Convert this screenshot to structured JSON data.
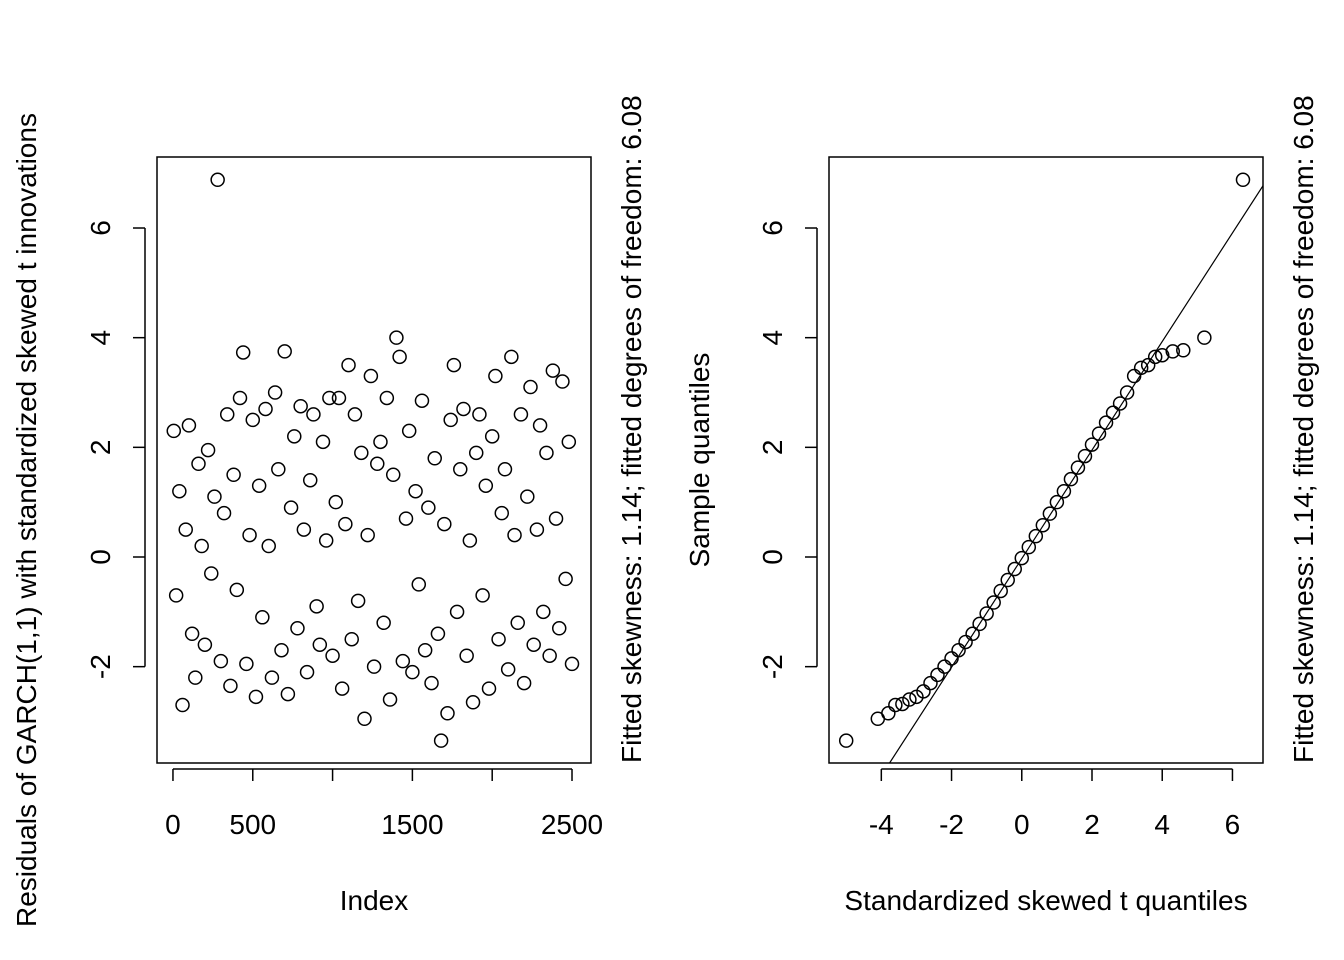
{
  "chart_data": [
    {
      "type": "scatter",
      "xlabel": "Index",
      "ylabel": "Residuals of GARCH(1,1) with standardized skewed t innovations",
      "annotation": "Fitted skewness: 1.14; fitted degrees of freedom: 6.08",
      "xlim": [
        -100,
        2619
      ],
      "ylim": [
        -3.757,
        7.295
      ],
      "xticks": [
        0,
        500,
        {
          "value": 1000,
          "label": null
        },
        1500,
        {
          "value": 2000,
          "label": null
        },
        2500
      ],
      "yticks": [
        -2,
        0,
        2,
        4,
        6
      ],
      "color": "#000000",
      "x": [
        5,
        20,
        40,
        60,
        80,
        100,
        120,
        140,
        160,
        180,
        200,
        220,
        240,
        260,
        280,
        300,
        320,
        340,
        360,
        380,
        400,
        420,
        440,
        460,
        480,
        500,
        520,
        540,
        560,
        580,
        600,
        620,
        640,
        660,
        680,
        700,
        720,
        740,
        760,
        780,
        800,
        820,
        840,
        860,
        880,
        900,
        920,
        940,
        960,
        980,
        1000,
        1020,
        1040,
        1060,
        1080,
        1100,
        1120,
        1140,
        1160,
        1180,
        1200,
        1220,
        1240,
        1260,
        1280,
        1300,
        1320,
        1340,
        1360,
        1380,
        1400,
        1420,
        1440,
        1460,
        1480,
        1500,
        1520,
        1540,
        1560,
        1580,
        1600,
        1620,
        1640,
        1660,
        1680,
        1700,
        1720,
        1740,
        1760,
        1780,
        1800,
        1820,
        1840,
        1860,
        1880,
        1900,
        1920,
        1940,
        1960,
        1980,
        2000,
        2020,
        2040,
        2060,
        2080,
        2100,
        2120,
        2140,
        2160,
        2180,
        2200,
        2220,
        2240,
        2260,
        2280,
        2300,
        2320,
        2340,
        2360,
        2380,
        2400,
        2420,
        2440,
        2460,
        2480,
        2500
      ],
      "values": [
        2.3,
        -0.7,
        1.2,
        -2.7,
        0.5,
        2.4,
        -1.4,
        -2.2,
        1.7,
        0.2,
        -1.6,
        1.95,
        -0.3,
        1.1,
        6.88,
        -1.9,
        0.8,
        2.6,
        -2.35,
        1.5,
        -0.6,
        2.9,
        3.73,
        -1.95,
        0.4,
        2.5,
        -2.55,
        1.3,
        -1.1,
        2.7,
        0.2,
        -2.2,
        3.0,
        1.6,
        -1.7,
        3.75,
        -2.5,
        0.9,
        2.2,
        -1.3,
        2.75,
        0.5,
        -2.1,
        1.4,
        2.6,
        -0.9,
        -1.6,
        2.1,
        0.3,
        2.9,
        -1.8,
        1.0,
        2.9,
        -2.4,
        0.6,
        3.5,
        -1.5,
        2.6,
        -0.8,
        1.9,
        -2.95,
        0.4,
        3.3,
        -2.0,
        1.7,
        2.1,
        -1.2,
        2.9,
        -2.6,
        1.5,
        4.0,
        3.65,
        -1.9,
        0.7,
        2.3,
        -2.1,
        1.2,
        -0.5,
        2.85,
        -1.7,
        0.9,
        -2.3,
        1.8,
        -1.4,
        -3.35,
        0.6,
        -2.85,
        2.5,
        3.5,
        -1.0,
        1.6,
        2.7,
        -1.8,
        0.3,
        -2.65,
        1.9,
        2.6,
        -0.7,
        1.3,
        -2.4,
        2.2,
        3.3,
        -1.5,
        0.8,
        1.6,
        -2.05,
        3.65,
        0.4,
        -1.2,
        2.6,
        -2.3,
        1.1,
        3.1,
        -1.6,
        0.5,
        2.4,
        -1.0,
        1.9,
        -1.8,
        3.4,
        0.7,
        -1.3,
        3.2,
        -0.4,
        2.1,
        -1.95
      ]
    },
    {
      "type": "scatter",
      "xlabel": "Standardized skewed t quantiles",
      "ylabel": "Sample quantiles",
      "annotation": "Fitted skewness: 1.14; fitted degrees of freedom: 6.08",
      "xlim": [
        -5.49,
        6.87
      ],
      "ylim": [
        -3.757,
        7.295
      ],
      "xticks": [
        -4,
        -2,
        0,
        2,
        4,
        6
      ],
      "yticks": [
        -2,
        0,
        2,
        4,
        6
      ],
      "color": "#000000",
      "reference_line": {
        "intercept": -0.03,
        "slope": 0.99
      },
      "x": [
        -5.0,
        -4.1,
        -3.8,
        -3.6,
        -3.4,
        -3.2,
        -3.0,
        -2.8,
        -2.6,
        -2.4,
        -2.2,
        -2.0,
        -1.8,
        -1.6,
        -1.4,
        -1.2,
        -1.0,
        -0.8,
        -0.6,
        -0.4,
        -0.2,
        0.0,
        0.2,
        0.4,
        0.6,
        0.8,
        1.0,
        1.2,
        1.4,
        1.6,
        1.8,
        2.0,
        2.2,
        2.4,
        2.6,
        2.8,
        3.0,
        3.2,
        3.4,
        3.6,
        3.8,
        4.0,
        4.3,
        4.6,
        5.2,
        6.3
      ],
      "values": [
        -3.35,
        -2.95,
        -2.85,
        -2.7,
        -2.68,
        -2.6,
        -2.55,
        -2.45,
        -2.3,
        -2.15,
        -2.0,
        -1.85,
        -1.7,
        -1.55,
        -1.4,
        -1.22,
        -1.03,
        -0.83,
        -0.62,
        -0.42,
        -0.22,
        -0.02,
        0.18,
        0.38,
        0.58,
        0.79,
        1.0,
        1.2,
        1.42,
        1.63,
        1.84,
        2.05,
        2.25,
        2.45,
        2.63,
        2.8,
        3.0,
        3.3,
        3.45,
        3.5,
        3.65,
        3.68,
        3.75,
        3.77,
        4.0,
        6.88
      ]
    }
  ]
}
